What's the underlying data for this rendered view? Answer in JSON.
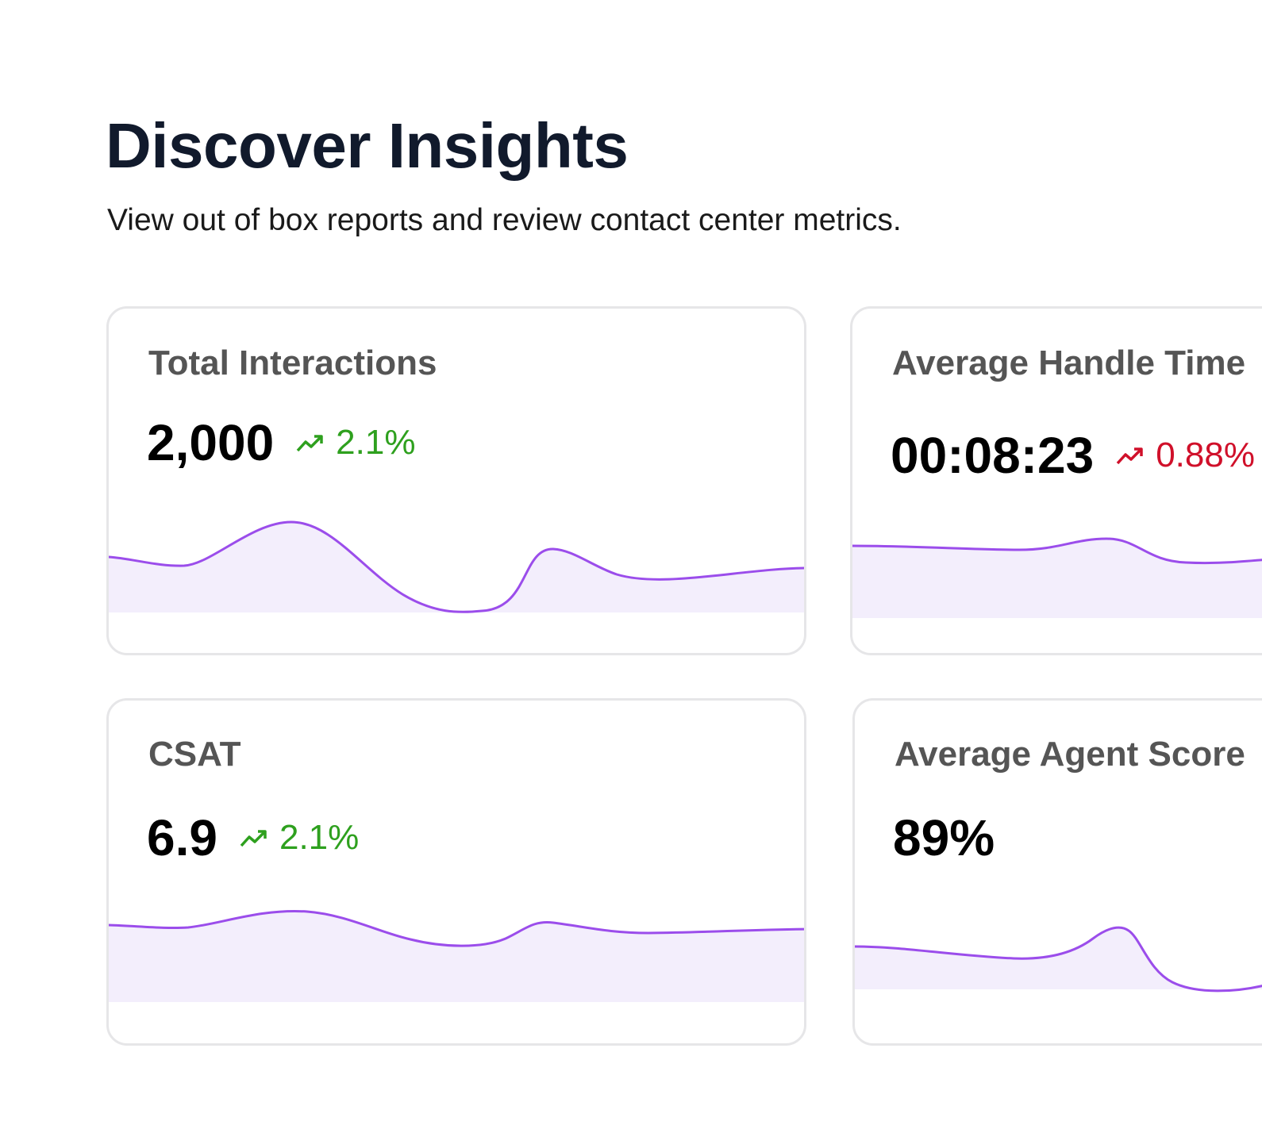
{
  "header": {
    "title": "Discover Insights",
    "subtitle": "View out of box reports and review contact center metrics."
  },
  "colors": {
    "line": "#9b4deb",
    "fill": "#f3eefc",
    "trend_up": "#2ea01e",
    "trend_down": "#d0102a",
    "card_border": "#e6e6e8"
  },
  "cards": [
    {
      "title": "Total Interactions",
      "value": "2,000",
      "trend": {
        "label": "2.1%",
        "direction": "up",
        "icon": "trending-up-icon"
      }
    },
    {
      "title": "Average Handle Time",
      "value": "00:08:23",
      "trend": {
        "label": "0.88%",
        "direction": "down",
        "icon": "trending-up-icon"
      }
    },
    {
      "title": "CSAT",
      "value": "6.9",
      "trend": {
        "label": "2.1%",
        "direction": "up",
        "icon": "trending-up-icon"
      }
    },
    {
      "title": "Average Agent Score",
      "value": "89%"
    }
  ]
}
